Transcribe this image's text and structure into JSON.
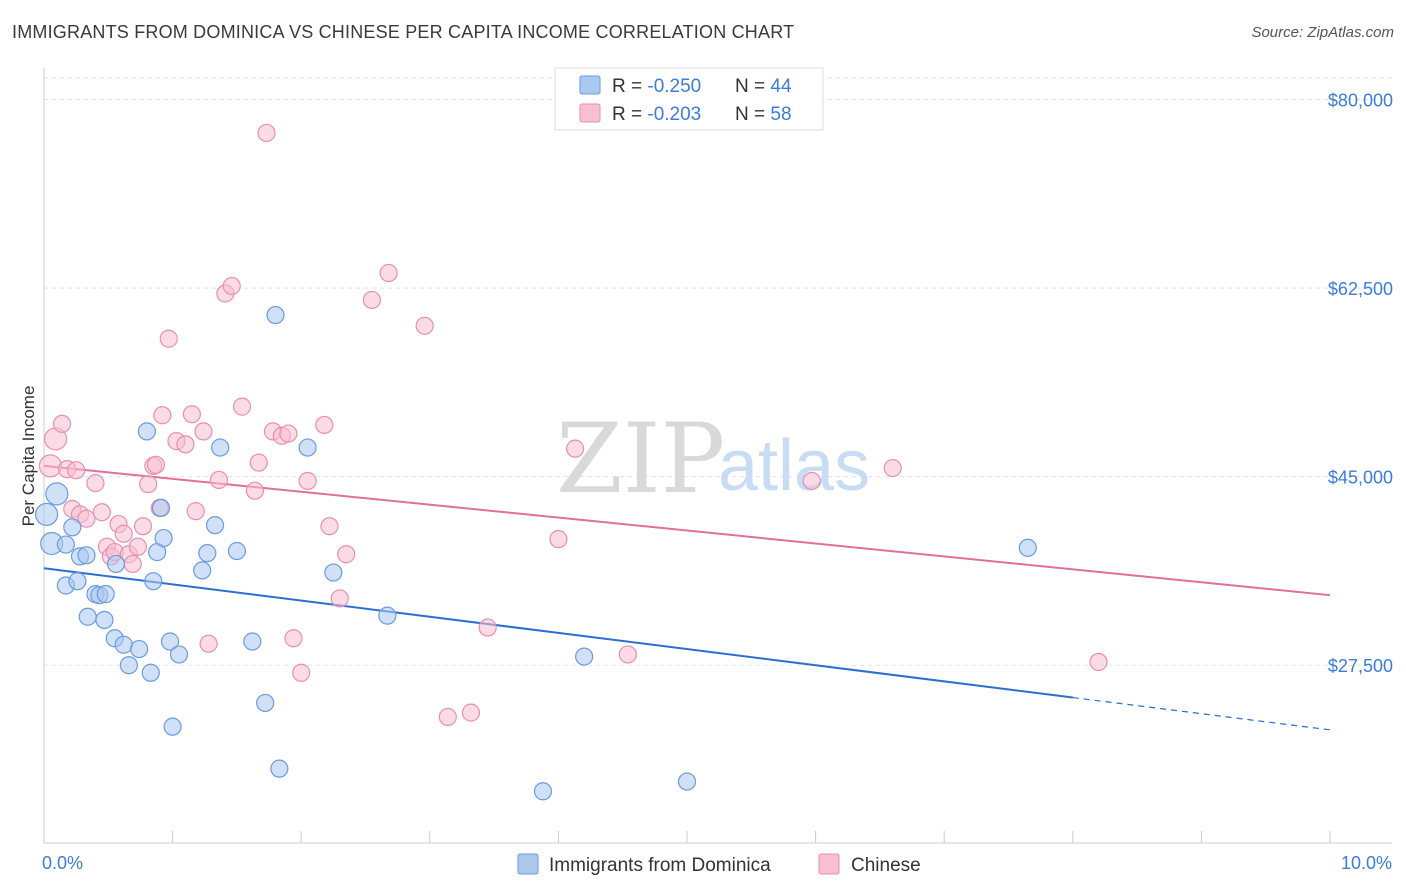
{
  "chart_data": {
    "type": "scatter",
    "title": "IMMIGRANTS FROM DOMINICA VS CHINESE PER CAPITA INCOME CORRELATION CHART",
    "source": "Source: ZipAtlas.com",
    "xlabel": "",
    "ylabel": "Per Capita Income",
    "xlim": [
      0,
      10
    ],
    "ylim": [
      11000,
      82000
    ],
    "x_tick_labels": [
      "0.0%",
      "10.0%"
    ],
    "y_ticks": [
      {
        "value": 80000,
        "label": "$80,000"
      },
      {
        "value": 62500,
        "label": "$62,500"
      },
      {
        "value": 45000,
        "label": "$45,000"
      },
      {
        "value": 27500,
        "label": "$27,500"
      }
    ],
    "grid": true,
    "watermark": {
      "left": "ZIP",
      "right": "atlas"
    },
    "stats": [
      {
        "r_label": "R = ",
        "r": "-0.250",
        "n_label": "N = ",
        "n": "44"
      },
      {
        "r_label": "R = ",
        "r": "-0.203",
        "n_label": "N = ",
        "n": "58"
      }
    ],
    "series": [
      {
        "name": "Immigrants from Dominica",
        "color": "#a9c9f0",
        "stroke": "#6b9be0",
        "line_color": "#2a70d0",
        "trend": {
          "x0": 0,
          "y0": 36500,
          "x1": 8.0,
          "y1": 24500,
          "dash_to_x": 10.0,
          "dash_to_y": 21500
        },
        "points": [
          [
            0.02,
            41500
          ],
          [
            0.06,
            38800
          ],
          [
            0.1,
            43400
          ],
          [
            0.17,
            38700
          ],
          [
            0.22,
            40300
          ],
          [
            0.17,
            34900
          ],
          [
            0.26,
            35300
          ],
          [
            0.28,
            37600
          ],
          [
            0.33,
            37700
          ],
          [
            0.34,
            32000
          ],
          [
            0.4,
            34100
          ],
          [
            0.43,
            34000
          ],
          [
            0.48,
            34100
          ],
          [
            0.47,
            31700
          ],
          [
            0.56,
            36900
          ],
          [
            0.55,
            30000
          ],
          [
            0.62,
            29400
          ],
          [
            0.66,
            27500
          ],
          [
            0.74,
            29000
          ],
          [
            0.8,
            49200
          ],
          [
            0.83,
            26800
          ],
          [
            0.85,
            35300
          ],
          [
            0.88,
            38000
          ],
          [
            0.91,
            42100
          ],
          [
            0.93,
            39300
          ],
          [
            0.98,
            29700
          ],
          [
            1.0,
            21800
          ],
          [
            1.05,
            28500
          ],
          [
            1.23,
            36300
          ],
          [
            1.27,
            37900
          ],
          [
            1.33,
            40500
          ],
          [
            1.37,
            47700
          ],
          [
            1.5,
            38100
          ],
          [
            1.62,
            29700
          ],
          [
            1.72,
            24000
          ],
          [
            1.8,
            60000
          ],
          [
            1.83,
            17900
          ],
          [
            2.05,
            47700
          ],
          [
            2.25,
            36100
          ],
          [
            2.67,
            32100
          ],
          [
            3.88,
            15800
          ],
          [
            4.2,
            28300
          ],
          [
            5.0,
            16700
          ],
          [
            7.65,
            38400
          ]
        ]
      },
      {
        "name": "Chinese",
        "color": "#f7bfd2",
        "stroke": "#eb8fae",
        "line_color": "#e0709a",
        "trend": {
          "x0": 0,
          "y0": 46000,
          "x1": 10.0,
          "y1": 34000
        },
        "points": [
          [
            0.05,
            46000
          ],
          [
            0.09,
            48500
          ],
          [
            0.14,
            49900
          ],
          [
            0.18,
            45700
          ],
          [
            0.25,
            45600
          ],
          [
            0.22,
            42000
          ],
          [
            0.28,
            41500
          ],
          [
            0.33,
            41100
          ],
          [
            0.4,
            44400
          ],
          [
            0.45,
            41700
          ],
          [
            0.49,
            38500
          ],
          [
            0.52,
            37600
          ],
          [
            0.55,
            38000
          ],
          [
            0.58,
            40600
          ],
          [
            0.62,
            39700
          ],
          [
            0.66,
            37800
          ],
          [
            0.69,
            36900
          ],
          [
            0.73,
            38500
          ],
          [
            0.77,
            40400
          ],
          [
            0.81,
            44300
          ],
          [
            0.85,
            46000
          ],
          [
            0.87,
            46100
          ],
          [
            0.9,
            42100
          ],
          [
            0.92,
            50700
          ],
          [
            0.97,
            57800
          ],
          [
            1.03,
            48300
          ],
          [
            1.1,
            48000
          ],
          [
            1.15,
            50800
          ],
          [
            1.18,
            41800
          ],
          [
            1.24,
            49200
          ],
          [
            1.28,
            29500
          ],
          [
            1.36,
            44700
          ],
          [
            1.41,
            62000
          ],
          [
            1.46,
            62700
          ],
          [
            1.54,
            51500
          ],
          [
            1.64,
            43700
          ],
          [
            1.67,
            46300
          ],
          [
            1.73,
            76900
          ],
          [
            1.78,
            49200
          ],
          [
            1.85,
            48800
          ],
          [
            1.9,
            49000
          ],
          [
            1.94,
            30000
          ],
          [
            2.0,
            26800
          ],
          [
            2.05,
            44600
          ],
          [
            2.18,
            49800
          ],
          [
            2.22,
            40400
          ],
          [
            2.3,
            33700
          ],
          [
            2.35,
            37800
          ],
          [
            2.55,
            61400
          ],
          [
            2.68,
            63900
          ],
          [
            2.96,
            59000
          ],
          [
            3.14,
            22700
          ],
          [
            3.32,
            23100
          ],
          [
            3.45,
            31000
          ],
          [
            4.0,
            39200
          ],
          [
            4.13,
            47600
          ],
          [
            4.54,
            28500
          ],
          [
            5.97,
            44600
          ],
          [
            6.6,
            45800
          ],
          [
            8.2,
            27800
          ]
        ]
      }
    ]
  }
}
